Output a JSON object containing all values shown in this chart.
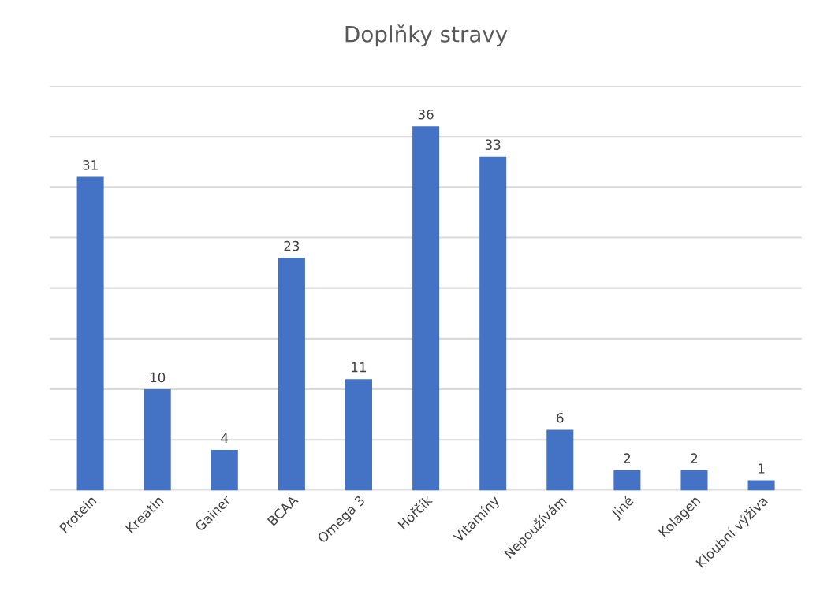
{
  "chart_data": {
    "type": "bar",
    "title": "Doplňky stravy",
    "categories": [
      "Protein",
      "Kreatin",
      "Gainer",
      "BCAA",
      "Omega 3",
      "Hořčík",
      "Vitamíny",
      "Nepoužívám",
      "Jiné",
      "Kolagen",
      "Kloubní výživa"
    ],
    "values": [
      31,
      10,
      4,
      23,
      11,
      36,
      33,
      6,
      2,
      2,
      1
    ],
    "color": "#4472c4",
    "ylim": [
      0,
      40
    ],
    "yticks": [
      {
        "value": 0,
        "label": null
      },
      {
        "value": 5,
        "label": null
      },
      {
        "value": 10,
        "label": null
      },
      {
        "value": 15,
        "label": null
      },
      {
        "value": 20,
        "label": null
      },
      {
        "value": 25,
        "label": null
      },
      {
        "value": 30,
        "label": null
      },
      {
        "value": 35,
        "label": null
      },
      {
        "value": 40,
        "label": null
      }
    ],
    "tick_labels": "x",
    "grid": "y",
    "data_labels": true
  }
}
